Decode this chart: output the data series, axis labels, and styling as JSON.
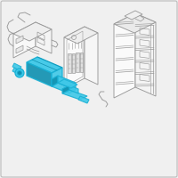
{
  "bg_color": "#f0f0f0",
  "border_color": "#bbbbbb",
  "line_color": "#999999",
  "lc_dark": "#777777",
  "highlight_color": "#1ab0d4",
  "highlight_fill": "#3ec8e8",
  "highlight_dark": "#0e90b0",
  "fig_width": 2.0,
  "fig_height": 2.0,
  "dpi": 100,
  "lw": 0.65
}
